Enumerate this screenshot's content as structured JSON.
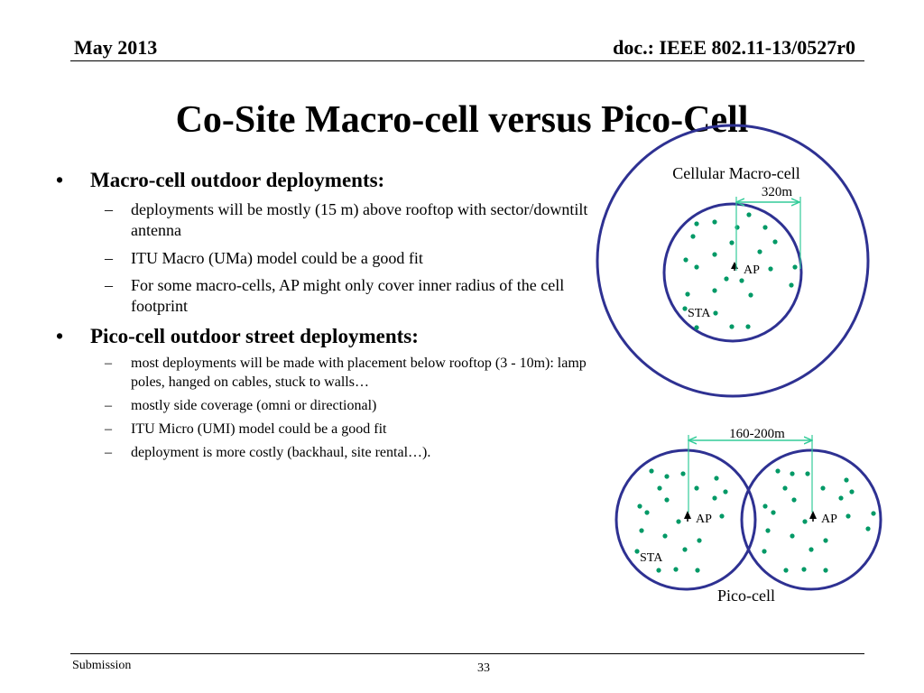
{
  "header": {
    "date": "May 2013",
    "doc_id": "doc.: IEEE 802.11-13/0527r0"
  },
  "title": "Co-Site Macro-cell versus Pico-Cell",
  "bullets": [
    {
      "mark": "•",
      "text": "Macro-cell outdoor deployments:",
      "subs": [
        "deployments will be mostly (15 m) above rooftop with sector/downtilt antenna",
        "ITU Macro (UMa) model could be a good fit",
        "For some macro-cells, AP might only cover inner radius of the cell footprint"
      ]
    },
    {
      "mark": "•",
      "text": "Pico-cell outdoor street deployments:",
      "subs": [
        "most deployments will be made with placement below rooftop (3 - 10m): lamp poles, hanged on cables, stuck to walls…",
        "mostly side coverage (omni or directional)",
        "ITU Micro (UMI) model could be a good fit",
        "deployment is more costly (backhaul, site rental…)."
      ]
    }
  ],
  "sub_mark": "–",
  "diagram": {
    "macro_label": "Cellular Macro-cell",
    "macro_distance": "320m",
    "pico_label": "Pico-cell",
    "pico_distance": "160-200m",
    "ap_label": "AP",
    "sta_label": "STA",
    "colors": {
      "circle": "#2e3192",
      "sta_dot": "#009966",
      "arrow": "#33cc99"
    }
  },
  "footer": {
    "left": "Submission",
    "page": "33"
  }
}
